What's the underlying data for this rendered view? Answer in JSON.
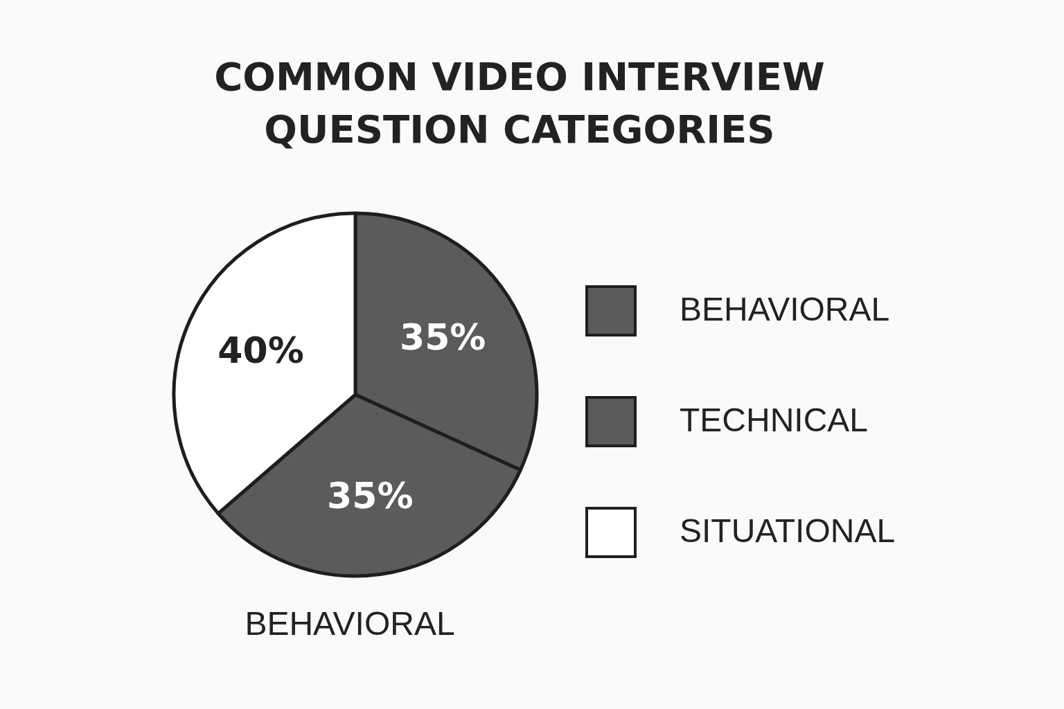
{
  "chart_data": {
    "type": "pie",
    "title": "COMMON VIDEO INTERVIEW QUESTION CATEGORIES",
    "categories": [
      "BEHAVIORAL",
      "TECHNICAL",
      "SITUATIONAL"
    ],
    "values": [
      35,
      35,
      40
    ],
    "colors": [
      "#5b5b5b",
      "#5b5b5b",
      "#ffffff"
    ],
    "value_labels": [
      "35%",
      "35%",
      "40%"
    ],
    "legend": "right",
    "annotations": [
      "BEHAVIORAL"
    ]
  }
}
